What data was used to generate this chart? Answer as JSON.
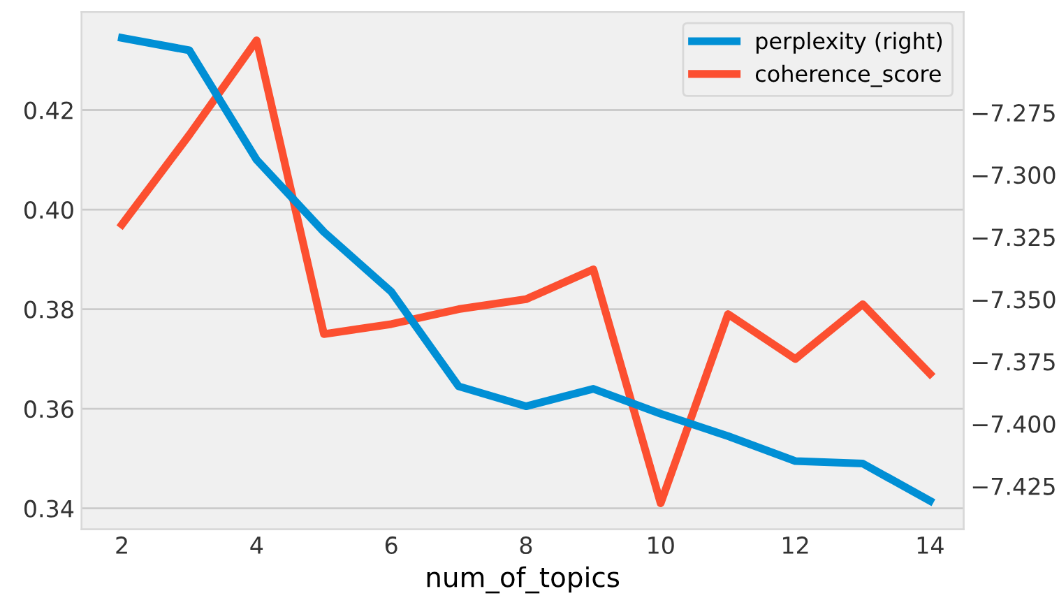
{
  "chart_data": {
    "type": "line",
    "xlabel": "num_of_topics",
    "x": [
      2,
      3,
      4,
      5,
      6,
      7,
      8,
      9,
      10,
      11,
      12,
      13,
      14
    ],
    "series": [
      {
        "name": "perplexity (right)",
        "color": "#008fd5",
        "axis": "y2",
        "values": [
          -7.245,
          -7.25,
          -7.294,
          -7.323,
          -7.347,
          -7.385,
          -7.393,
          -7.386,
          -7.396,
          -7.405,
          -7.415,
          -7.416,
          -7.431
        ]
      },
      {
        "name": "coherence_score",
        "color": "#fc4f30",
        "values": [
          0.397,
          0.415,
          0.434,
          0.375,
          0.377,
          0.38,
          0.382,
          0.388,
          0.341,
          0.379,
          0.37,
          0.381,
          0.367
        ]
      }
    ],
    "xlim": [
      1.4,
      14.5
    ],
    "xticks": [
      2,
      4,
      6,
      8,
      10,
      12,
      14
    ],
    "ylim": [
      0.3358,
      0.4397
    ],
    "yticks": [
      0.34,
      {
        "value": 0.36,
        "label": "0.36"
      },
      {
        "value": 0.38,
        "label": "0.38"
      },
      {
        "value": 0.4,
        "label": "0.40"
      },
      {
        "value": 0.42,
        "label": "0.42"
      }
    ],
    "y2lim": [
      -7.4424,
      -7.2346
    ],
    "y2ticks": [
      {
        "value": -7.425,
        "label": "−7.425"
      },
      {
        "value": -7.4,
        "label": "−7.400"
      },
      {
        "value": -7.375,
        "label": "−7.375"
      },
      {
        "value": -7.35,
        "label": "−7.350"
      },
      {
        "value": -7.325,
        "label": "−7.325"
      },
      {
        "value": -7.3,
        "label": "−7.300"
      },
      {
        "value": -7.275,
        "label": "−7.275"
      }
    ],
    "grid": "y",
    "legend": "top right",
    "line_style": "solid",
    "marker": "none"
  }
}
